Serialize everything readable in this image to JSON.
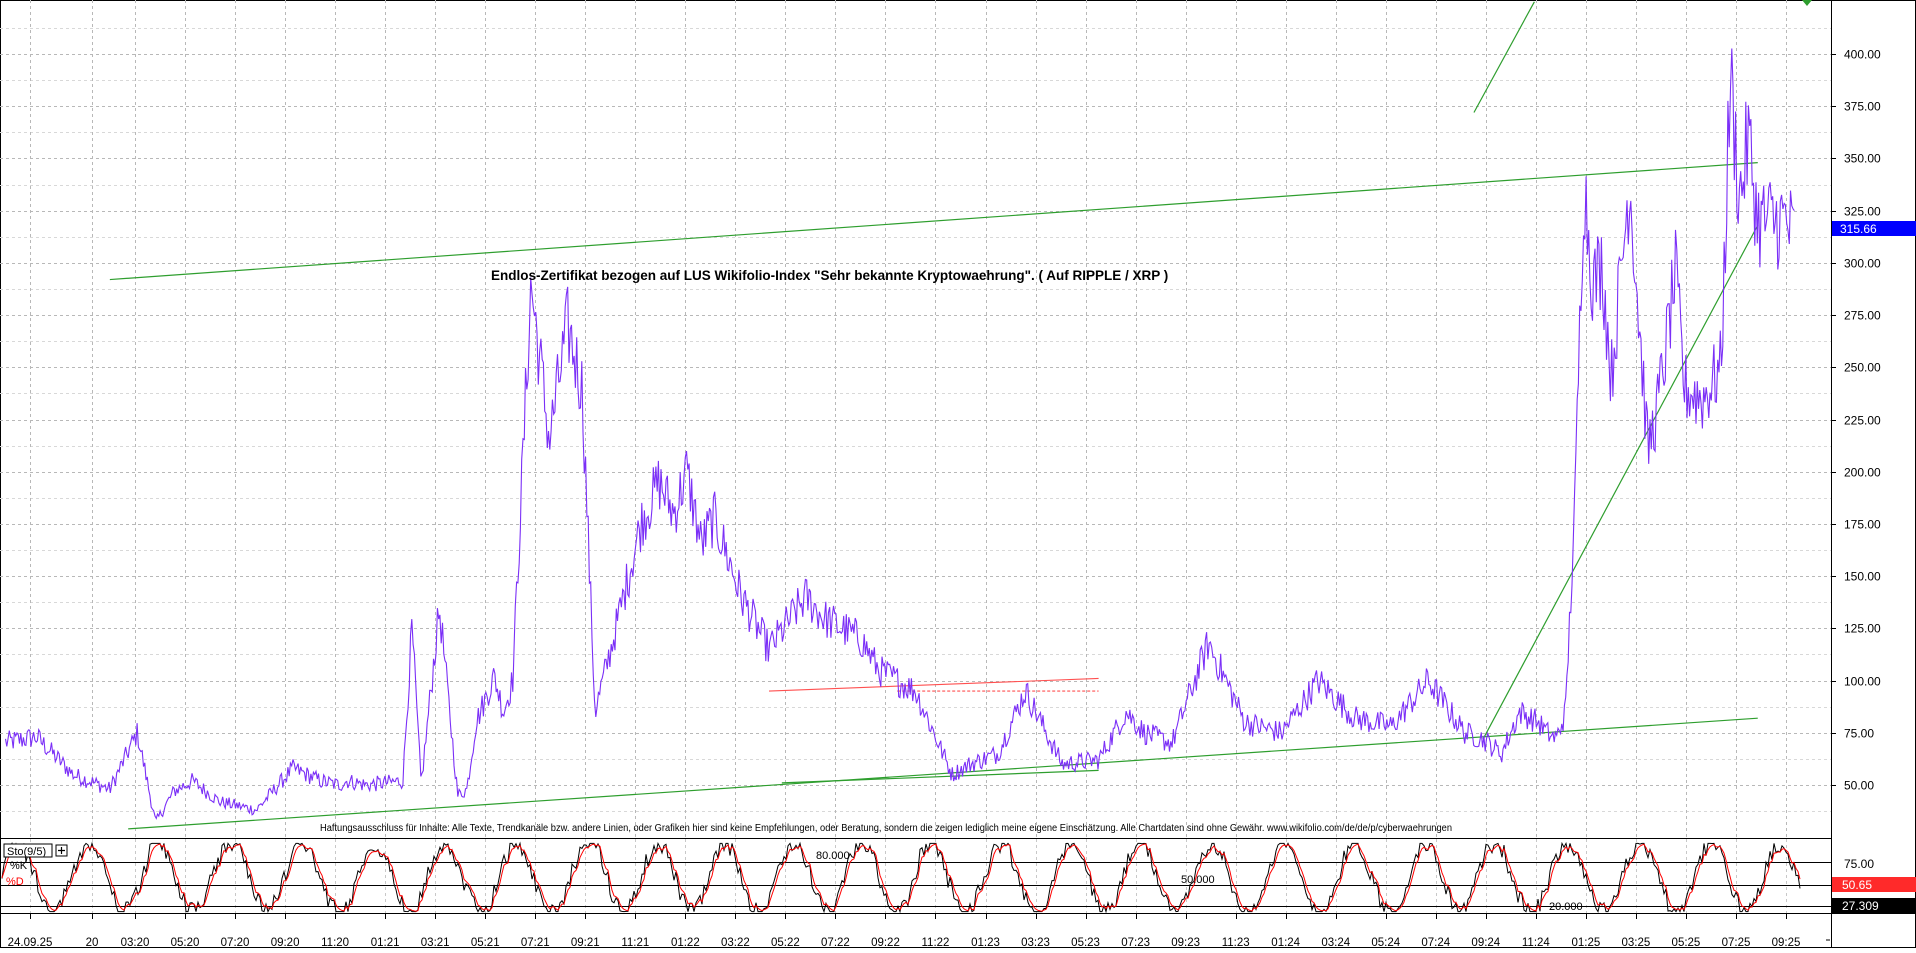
{
  "chart_data": [
    {
      "type": "line",
      "panel": "price",
      "title": "Endlos-Zertifikat bezogen auf LUS Wikifolio-Index \"Sehr bekannte Kryptowaehrung\". ( Auf RIPPLE / XRP )",
      "disclaimer": "Haftungsausschluss für Inhalte: Alle Texte, Trendkanäle bzw. andere Linien, oder Grafiken hier sind keine Empfehlungen, oder Beratung, sondern die zeigen lediglich meine eigene Einschätzung. Alle Chartdaten sind ohne Gewähr. www.wikifolio.com/de/de/p/cyberwaehrungen",
      "ylim": [
        25,
        423
      ],
      "y_ticks": [
        "50.00",
        "75.00",
        "100.00",
        "125.00",
        "150.00",
        "175.00",
        "200.00",
        "225.00",
        "250.00",
        "275.00",
        "300.00",
        "325.00",
        "350.00",
        "375.00",
        "400.00"
      ],
      "x_labels": [
        "24.09.25",
        "20",
        "03:20",
        "05:20",
        "07:20",
        "09:20",
        "11:20",
        "01:21",
        "03:21",
        "05:21",
        "07:21",
        "09:21",
        "11:21",
        "01:22",
        "03:22",
        "05:22",
        "07:22",
        "09:22",
        "11:22",
        "01:23",
        "03:23",
        "05:23",
        "07:23",
        "09:23",
        "11:23",
        "01:24",
        "03:24",
        "05:24",
        "07:24",
        "09:24",
        "11:24",
        "01:25",
        "03:25",
        "05:25",
        "07:25",
        "09:25"
      ],
      "grid": true,
      "last_value": "315.66",
      "colors": {
        "price": "#7b2ff7",
        "trend": "#2e9e2e",
        "resistance": "#ff5050",
        "last_badge": "#0000ff"
      },
      "series": [
        {
          "t": [
            0,
            0.02,
            0.04,
            0.06,
            0.075,
            0.085,
            0.095,
            0.105,
            0.12,
            0.14,
            0.16,
            0.175,
            0.185,
            0.19,
            0.2,
            0.22,
            0.225,
            0.23,
            0.24,
            0.245,
            0.25,
            0.255,
            0.26,
            0.27,
            0.275,
            0.28,
            0.29,
            0.3,
            0.31,
            0.318,
            0.325,
            0.335,
            0.35,
            0.36,
            0.368,
            0.375,
            0.383,
            0.39,
            0.405,
            0.42,
            0.44,
            0.45,
            0.47,
            0.48,
            0.5,
            0.52,
            0.53,
            0.545,
            0.56,
            0.58,
            0.6,
            0.615,
            0.625,
            0.64,
            0.66,
            0.68,
            0.7,
            0.72,
            0.74,
            0.76,
            0.78,
            0.8,
            0.81,
            0.82,
            0.83,
            0.84,
            0.845,
            0.85,
            0.855,
            0.86,
            0.865,
            0.87,
            0.875,
            0.88,
            0.89,
            0.9,
            0.905,
            0.91,
            0.915,
            0.92,
            0.93,
            0.94,
            0.945,
            0.95,
            0.955,
            0.96,
            0.97,
            0.975,
            0.98
          ],
          "values": [
            70,
            73,
            55,
            48,
            75,
            32,
            47,
            52,
            42,
            38,
            58,
            52,
            50,
            52,
            50,
            52,
            125,
            50,
            135,
            90,
            45,
            48,
            80,
            102,
            85,
            100,
            290,
            215,
            270,
            240,
            85,
            120,
            175,
            195,
            180,
            200,
            165,
            178,
            140,
            115,
            140,
            130,
            120,
            105,
            95,
            55,
            60,
            65,
            95,
            60,
            62,
            85,
            75,
            70,
            118,
            80,
            75,
            100,
            82,
            78,
            100,
            75,
            72,
            65,
            85,
            80,
            75,
            72,
            85,
            180,
            340,
            290,
            300,
            245,
            340,
            210,
            230,
            260,
            295,
            240,
            235,
            250,
            390,
            330,
            360,
            320,
            320,
            320,
            312
          ]
        }
      ],
      "trendlines": [
        {
          "name": "upper-channel",
          "from": [
            0.06,
            292
          ],
          "to": [
            0.96,
            348
          ]
        },
        {
          "name": "lower-channel",
          "from": [
            0.07,
            29
          ],
          "to": [
            0.96,
            82
          ]
        },
        {
          "name": "steep-support",
          "from": [
            0.81,
            72
          ],
          "to": [
            0.96,
            318
          ]
        },
        {
          "name": "spike-line",
          "from": [
            0.805,
            372
          ],
          "to": [
            0.838,
            425
          ]
        },
        {
          "name": "small-support",
          "from": [
            0.427,
            51
          ],
          "to": [
            0.6,
            57
          ]
        }
      ],
      "resistance_lines": [
        {
          "name": "red-line",
          "from": [
            0.42,
            95
          ],
          "to": [
            0.6,
            101
          ]
        },
        {
          "name": "red-dotted",
          "from": [
            0.49,
            95
          ],
          "to": [
            0.6,
            95
          ]
        }
      ]
    },
    {
      "type": "line",
      "panel": "oscillator",
      "label": "Sto(9/5)",
      "legend": [
        {
          "name": "%K",
          "color": "#000000"
        },
        {
          "name": "%D",
          "color": "#ff0000"
        }
      ],
      "levels": [
        "80.000",
        "50.000",
        "20.000"
      ],
      "y_ticks": [
        "75.00"
      ],
      "values_badges": {
        "d": "50.65",
        "k": "27.309"
      },
      "colors": {
        "k": "#000000",
        "d": "#ff0000",
        "d_badge": "#ff2a2a",
        "k_badge": "#000000"
      }
    }
  ]
}
